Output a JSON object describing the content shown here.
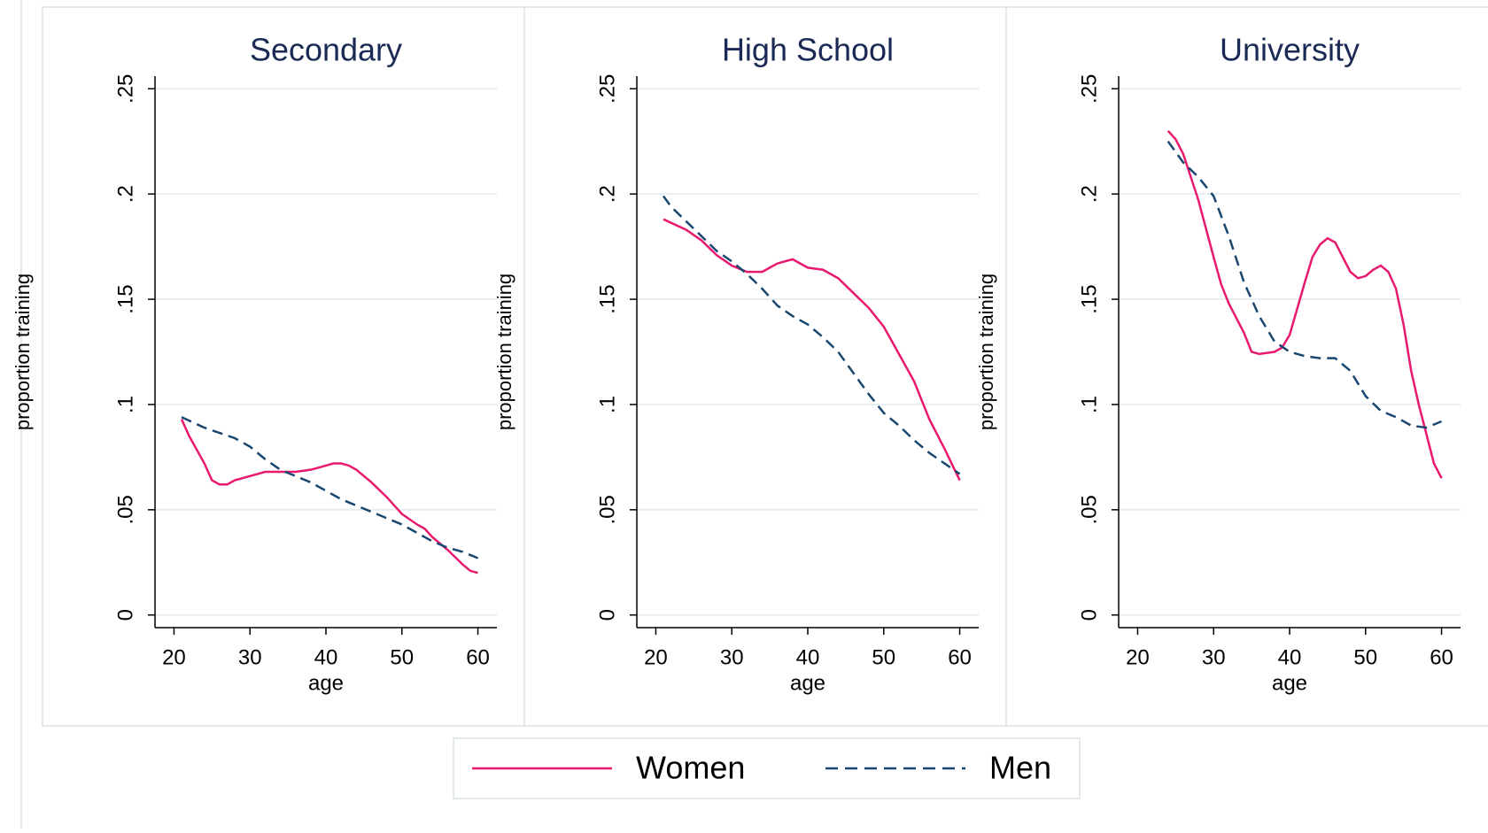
{
  "chart_data": [
    {
      "type": "line",
      "title": "Secondary",
      "x_label": "age",
      "y_label": "proportion training",
      "xlim": [
        17.5,
        62.5
      ],
      "ylim": [
        -0.006,
        0.256
      ],
      "xticks": [
        20,
        30,
        40,
        50,
        60
      ],
      "yticks": [
        0,
        {
          "value": 0.05,
          "label": ".05"
        },
        {
          "value": 0.1,
          "label": ".1"
        },
        {
          "value": 0.15,
          "label": ".15"
        },
        {
          "value": 0.2,
          "label": ".2"
        },
        {
          "value": 0.25,
          "label": ".25"
        }
      ],
      "grid": true,
      "legend": "bottom",
      "series": [
        {
          "name": "Women",
          "color": "#e8196e",
          "dash": false,
          "x": [
            21,
            22,
            24,
            25,
            26,
            27,
            28,
            30,
            32,
            34,
            36,
            38,
            40,
            41,
            42,
            43,
            44,
            46,
            48,
            50,
            52,
            53,
            54,
            56,
            58,
            59,
            60
          ],
          "values": [
            0.093,
            0.085,
            0.072,
            0.064,
            0.062,
            0.062,
            0.064,
            0.066,
            0.068,
            0.068,
            0.068,
            0.069,
            0.071,
            0.072,
            0.072,
            0.071,
            0.069,
            0.063,
            0.056,
            0.048,
            0.043,
            0.041,
            0.037,
            0.031,
            0.024,
            0.021,
            0.02
          ]
        },
        {
          "name": "Men",
          "color": "#1a476f",
          "dash": true,
          "x": [
            21,
            24,
            28,
            30,
            32,
            34,
            36,
            38,
            40,
            42,
            44,
            46,
            48,
            50,
            52,
            54,
            56,
            58,
            60
          ],
          "values": [
            0.094,
            0.089,
            0.084,
            0.08,
            0.074,
            0.069,
            0.066,
            0.063,
            0.059,
            0.055,
            0.052,
            0.049,
            0.046,
            0.043,
            0.039,
            0.035,
            0.032,
            0.03,
            0.027
          ]
        }
      ]
    },
    {
      "type": "line",
      "title": "High School",
      "x_label": "age",
      "y_label": "proportion training",
      "xlim": [
        17.5,
        62.5
      ],
      "ylim": [
        -0.006,
        0.256
      ],
      "xticks": [
        20,
        30,
        40,
        50,
        60
      ],
      "yticks": [
        0,
        {
          "value": 0.05,
          "label": ".05"
        },
        {
          "value": 0.1,
          "label": ".1"
        },
        {
          "value": 0.15,
          "label": ".15"
        },
        {
          "value": 0.2,
          "label": ".2"
        },
        {
          "value": 0.25,
          "label": ".25"
        }
      ],
      "grid": true,
      "series": [
        {
          "name": "Women",
          "color": "#e8196e",
          "dash": false,
          "x": [
            21,
            24,
            26,
            28,
            30,
            32,
            34,
            36,
            38,
            40,
            42,
            44,
            46,
            48,
            50,
            52,
            54,
            56,
            58,
            60
          ],
          "values": [
            0.188,
            0.183,
            0.178,
            0.171,
            0.166,
            0.163,
            0.163,
            0.167,
            0.169,
            0.165,
            0.164,
            0.16,
            0.153,
            0.146,
            0.137,
            0.124,
            0.111,
            0.093,
            0.079,
            0.064
          ]
        },
        {
          "name": "Men",
          "color": "#1a476f",
          "dash": true,
          "x": [
            21,
            22,
            24,
            26,
            28,
            30,
            32,
            34,
            36,
            38,
            40,
            42,
            44,
            46,
            48,
            50,
            52,
            54,
            56,
            58,
            60
          ],
          "values": [
            0.199,
            0.194,
            0.187,
            0.18,
            0.173,
            0.168,
            0.162,
            0.155,
            0.147,
            0.142,
            0.138,
            0.132,
            0.125,
            0.115,
            0.105,
            0.096,
            0.09,
            0.083,
            0.077,
            0.072,
            0.067
          ]
        }
      ]
    },
    {
      "type": "line",
      "title": "University",
      "x_label": "age",
      "y_label": "proportion training",
      "xlim": [
        17.5,
        62.5
      ],
      "ylim": [
        -0.006,
        0.256
      ],
      "xticks": [
        20,
        30,
        40,
        50,
        60
      ],
      "yticks": [
        0,
        {
          "value": 0.05,
          "label": ".05"
        },
        {
          "value": 0.1,
          "label": ".1"
        },
        {
          "value": 0.15,
          "label": ".15"
        },
        {
          "value": 0.2,
          "label": ".2"
        },
        {
          "value": 0.25,
          "label": ".25"
        }
      ],
      "grid": true,
      "series": [
        {
          "name": "Women",
          "color": "#e8196e",
          "dash": false,
          "x": [
            24,
            25,
            26,
            28,
            30,
            31,
            32,
            34,
            35,
            36,
            38,
            39,
            40,
            42,
            43,
            44,
            45,
            46,
            47,
            48,
            49,
            50,
            51,
            52,
            53,
            54,
            55,
            56,
            57,
            58,
            59,
            60
          ],
          "values": [
            0.23,
            0.226,
            0.219,
            0.197,
            0.17,
            0.157,
            0.148,
            0.134,
            0.125,
            0.124,
            0.125,
            0.127,
            0.133,
            0.158,
            0.17,
            0.176,
            0.179,
            0.177,
            0.17,
            0.163,
            0.16,
            0.161,
            0.164,
            0.166,
            0.163,
            0.155,
            0.138,
            0.116,
            0.1,
            0.086,
            0.072,
            0.065
          ]
        },
        {
          "name": "Men",
          "color": "#1a476f",
          "dash": true,
          "x": [
            24,
            26,
            28,
            30,
            32,
            34,
            36,
            38,
            40,
            42,
            44,
            46,
            48,
            50,
            52,
            54,
            56,
            58,
            60
          ],
          "values": [
            0.225,
            0.215,
            0.208,
            0.199,
            0.18,
            0.158,
            0.142,
            0.13,
            0.125,
            0.123,
            0.122,
            0.122,
            0.116,
            0.104,
            0.097,
            0.094,
            0.09,
            0.089,
            0.092
          ]
        }
      ]
    }
  ]
}
